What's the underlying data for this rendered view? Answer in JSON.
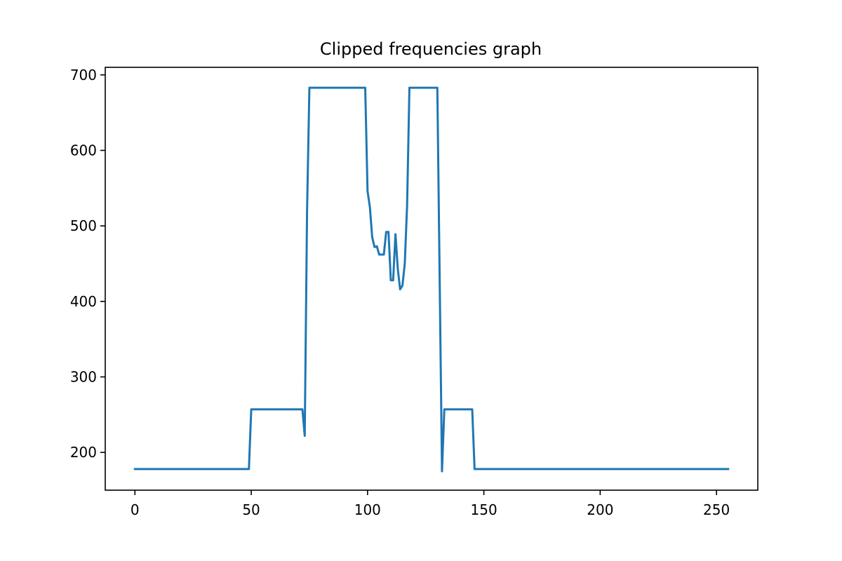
{
  "chart_data": {
    "type": "line",
    "title": "Clipped frequencies graph",
    "xlabel": "",
    "ylabel": "",
    "xlim": [
      -12.75,
      267.75
    ],
    "ylim": [
      150,
      710
    ],
    "xticks": [
      0,
      50,
      100,
      150,
      200,
      250
    ],
    "yticks": [
      200,
      300,
      400,
      500,
      600,
      700
    ],
    "grid": false,
    "colors": {
      "line": "#1f77b4",
      "axes": "#000000",
      "background": "#ffffff"
    },
    "series": [
      {
        "x": [
          0,
          49,
          50,
          72,
          73,
          74,
          75,
          99,
          100,
          101,
          102,
          103,
          104,
          105,
          107,
          108,
          109,
          110,
          111,
          112,
          113,
          114,
          115,
          116,
          117,
          118,
          130,
          131,
          132,
          133,
          145,
          146,
          255
        ],
        "y": [
          178,
          178,
          257,
          257,
          222,
          520,
          683,
          683,
          546,
          525,
          485,
          472,
          473,
          462,
          462,
          492,
          492,
          428,
          428,
          489,
          443,
          416,
          421,
          450,
          527,
          683,
          683,
          430,
          175,
          257,
          257,
          178,
          178
        ]
      }
    ]
  }
}
